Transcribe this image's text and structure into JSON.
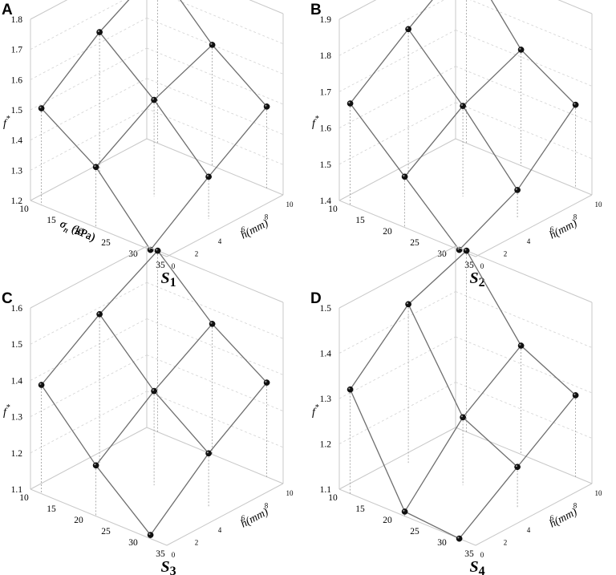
{
  "chart_data": [
    {
      "type": "scatter3d",
      "panel_label": "A",
      "subtitle_main": "S",
      "subtitle_sub": "1",
      "zlabel": "f",
      "zlabel_sup": "*",
      "xlabel_sigma": "σ",
      "xlabel_sub": "n",
      "xlabel_unit": "(kPa)",
      "ylabel": "h(mm)",
      "x_ticks": [
        "10",
        "15",
        "20",
        "25",
        "30",
        "35"
      ],
      "y_ticks": [
        "0",
        "2",
        "4",
        "6",
        "8",
        "10"
      ],
      "z_ticks": [
        "1.2",
        "1.3",
        "1.4",
        "1.5",
        "1.6",
        "1.7",
        "1.8"
      ],
      "xlim": [
        10,
        35
      ],
      "ylim": [
        0,
        10
      ],
      "zlim": [
        1.2,
        1.8
      ],
      "sigma": [
        12,
        22,
        32
      ],
      "h": [
        0,
        5,
        10
      ],
      "values": [
        [
          1.52,
          1.67,
          1.78
        ],
        [
          1.4,
          1.52,
          1.6
        ],
        [
          1.2,
          1.34,
          1.47
        ]
      ]
    },
    {
      "type": "scatter3d",
      "panel_label": "B",
      "subtitle_main": "S",
      "subtitle_sub": "2",
      "zlabel": "f",
      "zlabel_sup": "*",
      "xlabel_sigma": "σ",
      "xlabel_sub": "n",
      "xlabel_unit": "(kPa)",
      "ylabel": "h(mm)",
      "x_ticks": [
        "10",
        "15",
        "20",
        "25",
        "30",
        "35"
      ],
      "y_ticks": [
        "0",
        "2",
        "4",
        "6",
        "8",
        "10"
      ],
      "z_ticks": [
        "1.4",
        "1.5",
        "1.6",
        "1.7",
        "1.8",
        "1.9"
      ],
      "xlim": [
        10,
        35
      ],
      "ylim": [
        0,
        10
      ],
      "zlim": [
        1.4,
        1.9
      ],
      "sigma": [
        12,
        22,
        32
      ],
      "h": [
        0,
        5,
        10
      ],
      "values": [
        [
          1.68,
          1.8,
          1.91
        ],
        [
          1.54,
          1.65,
          1.72
        ],
        [
          1.4,
          1.48,
          1.63
        ]
      ]
    },
    {
      "type": "scatter3d",
      "panel_label": "C",
      "subtitle_main": "S",
      "subtitle_sub": "3",
      "zlabel": "f",
      "zlabel_sup": "*",
      "xlabel_sigma": "σ",
      "xlabel_sub": "n",
      "xlabel_unit": "(kPa)",
      "ylabel": "h(mm)",
      "x_ticks": [
        "10",
        "15",
        "20",
        "25",
        "30",
        "35"
      ],
      "y_ticks": [
        "0",
        "2",
        "4",
        "6",
        "8",
        "10"
      ],
      "z_ticks": [
        "1.1",
        "1.2",
        "1.3",
        "1.4",
        "1.5",
        "1.6"
      ],
      "xlim": [
        10,
        35
      ],
      "ylim": [
        0,
        10
      ],
      "zlim": [
        1.1,
        1.6
      ],
      "sigma": [
        12,
        22,
        32
      ],
      "h": [
        0,
        5,
        10
      ],
      "values": [
        [
          1.4,
          1.51,
          1.6
        ],
        [
          1.24,
          1.36,
          1.46
        ],
        [
          1.11,
          1.25,
          1.36
        ]
      ]
    },
    {
      "type": "scatter3d",
      "panel_label": "D",
      "subtitle_main": "S",
      "subtitle_sub": "4",
      "zlabel": "f",
      "zlabel_sup": "*",
      "xlabel_sigma": "σ",
      "xlabel_sub": "n",
      "xlabel_unit": "(kPa)",
      "ylabel": "h(mm)",
      "x_ticks": [
        "10",
        "15",
        "20",
        "25",
        "30",
        "35"
      ],
      "y_ticks": [
        "0",
        "2",
        "4",
        "6",
        "8",
        "10"
      ],
      "z_ticks": [
        "1.1",
        "1.2",
        "1.3",
        "1.4",
        "1.5"
      ],
      "xlim": [
        10,
        35
      ],
      "ylim": [
        0,
        10
      ],
      "zlim": [
        1.1,
        1.5
      ],
      "sigma": [
        12,
        22,
        32
      ],
      "h": [
        0,
        5,
        10
      ],
      "values": [
        [
          1.33,
          1.45,
          1.5
        ],
        [
          1.11,
          1.25,
          1.34
        ],
        [
          1.1,
          1.19,
          1.28
        ]
      ]
    }
  ]
}
